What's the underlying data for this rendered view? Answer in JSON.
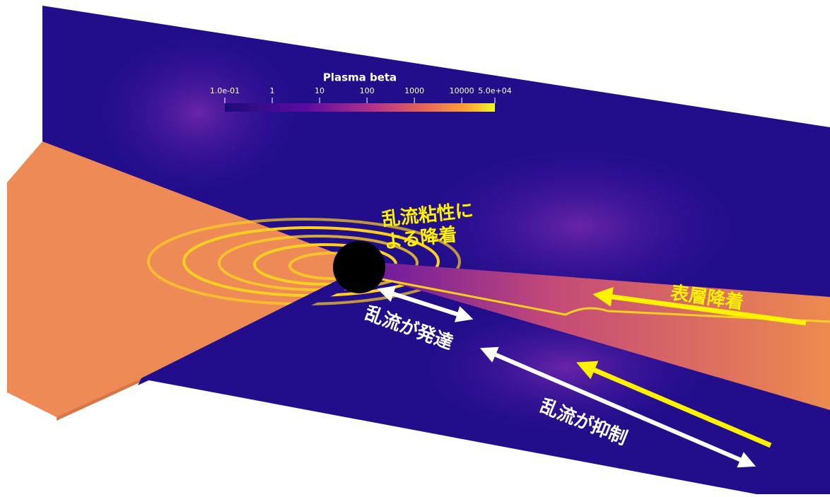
{
  "colorbar": {
    "title": "Plasma beta",
    "range": [
      0.1,
      50000
    ],
    "log": true,
    "ticks": [
      {
        "value": 0.1,
        "label": "1.0e-01"
      },
      1,
      10,
      100,
      1000,
      10000,
      {
        "value": 50000,
        "label": "5.0e+04"
      }
    ]
  },
  "annotations": {
    "turbulent_viscosity": [
      "乱流粘性に",
      "よる降着"
    ],
    "surface_accretion": "表層降着",
    "turbulence_develops": "乱流が発達",
    "turbulence_suppressed": "乱流が抑制"
  }
}
